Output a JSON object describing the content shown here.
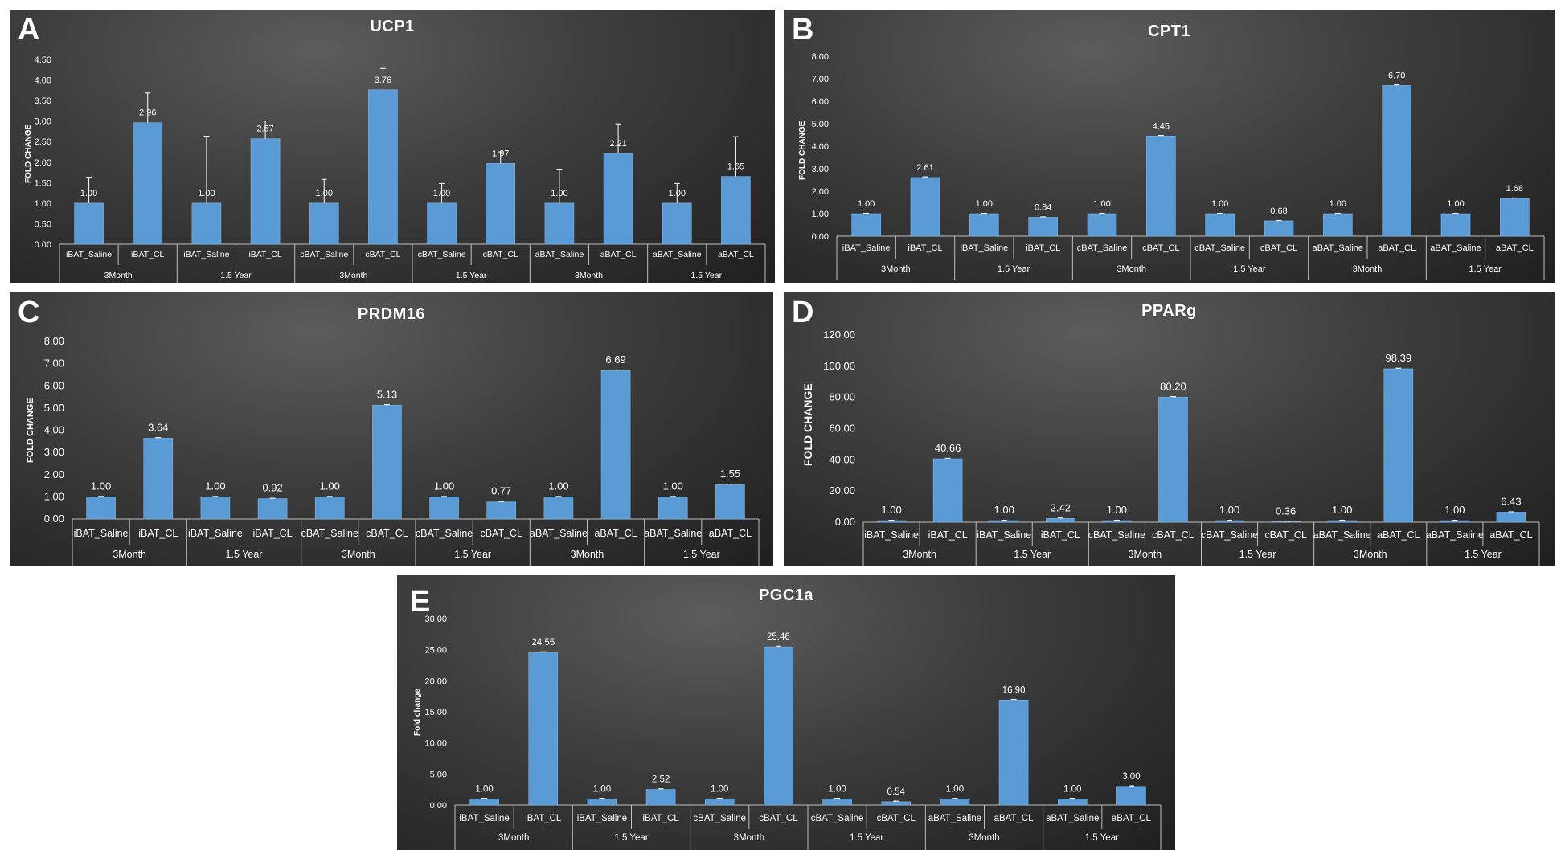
{
  "chart_data": [
    {
      "panel": "A",
      "type": "bar",
      "title": "UCP1",
      "ylabel": "FOLD CHANGE",
      "ylim": [
        0,
        4.5
      ],
      "yticks": [
        "0.00",
        "0.50",
        "1.00",
        "1.50",
        "2.00",
        "2.50",
        "3.00",
        "3.50",
        "4.00",
        "4.50"
      ],
      "categories": [
        "iBAT_Saline",
        "iBAT_CL",
        "iBAT_Saline",
        "iBAT_CL",
        "cBAT_Saline",
        "cBAT_CL",
        "cBAT_Saline",
        "cBAT_CL",
        "aBAT_Saline",
        "aBAT_CL",
        "aBAT_Saline",
        "aBAT_CL"
      ],
      "groups": [
        "3Month",
        "1.5 Year",
        "3Month",
        "1.5 Year",
        "3Month",
        "1.5 Year"
      ],
      "values": [
        1.0,
        2.96,
        1.0,
        2.57,
        1.0,
        3.76,
        1.0,
        1.97,
        1.0,
        2.21,
        1.0,
        1.65
      ],
      "labels": [
        "1.00",
        "2.96",
        "1.00",
        "2.57",
        "1.00",
        "3.76",
        "1.00",
        "1.97",
        "1.00",
        "2.21",
        "1.00",
        "1.65"
      ],
      "errors": [
        0.63,
        0.72,
        1.63,
        0.43,
        0.58,
        0.52,
        0.48,
        0.28,
        0.83,
        0.72,
        0.48,
        0.97
      ]
    },
    {
      "panel": "B",
      "type": "bar",
      "title": "CPT1",
      "ylabel": "FOLD CHANGE",
      "ylim": [
        0,
        8
      ],
      "yticks": [
        "0.00",
        "1.00",
        "2.00",
        "3.00",
        "4.00",
        "5.00",
        "6.00",
        "7.00",
        "8.00"
      ],
      "categories": [
        "iBAT_Saline",
        "iBAT_CL",
        "iBAT_Saline",
        "iBAT_CL",
        "cBAT_Saline",
        "cBAT_CL",
        "cBAT_Saline",
        "cBAT_CL",
        "aBAT_Saline",
        "aBAT_CL",
        "aBAT_Saline",
        "aBAT_CL"
      ],
      "groups": [
        "3Month",
        "1.5 Year",
        "3Month",
        "1.5 Year",
        "3Month",
        "1.5 Year"
      ],
      "values": [
        1.0,
        2.61,
        1.0,
        0.84,
        1.0,
        4.45,
        1.0,
        0.68,
        1.0,
        6.7,
        1.0,
        1.68
      ],
      "labels": [
        "1.00",
        "2.61",
        "1.00",
        "0.84",
        "1.00",
        "4.45",
        "1.00",
        "0.68",
        "1.00",
        "6.70",
        "1.00",
        "1.68"
      ],
      "errors": [
        0.02,
        0.03,
        0.02,
        0.02,
        0.02,
        0.03,
        0.02,
        0.02,
        0.02,
        0.03,
        0.02,
        0.02
      ]
    },
    {
      "panel": "C",
      "type": "bar",
      "title": "PRDM16",
      "ylabel": "FOLD CHANGE",
      "ylim": [
        0,
        8
      ],
      "yticks": [
        "0.00",
        "1.00",
        "2.00",
        "3.00",
        "4.00",
        "5.00",
        "6.00",
        "7.00",
        "8.00"
      ],
      "categories": [
        "iBAT_Saline",
        "iBAT_CL",
        "iBAT_Saline",
        "iBAT_CL",
        "cBAT_Saline",
        "cBAT_CL",
        "cBAT_Saline",
        "cBAT_CL",
        "aBAT_Saline",
        "aBAT_CL",
        "aBAT_Saline",
        "aBAT_CL"
      ],
      "groups": [
        "3Month",
        "1.5 Year",
        "3Month",
        "1.5 Year",
        "3Month",
        "1.5 Year"
      ],
      "values": [
        1.0,
        3.64,
        1.0,
        0.92,
        1.0,
        5.13,
        1.0,
        0.77,
        1.0,
        6.69,
        1.0,
        1.55
      ],
      "labels": [
        "1.00",
        "3.64",
        "1.00",
        "0.92",
        "1.00",
        "5.13",
        "1.00",
        "0.77",
        "1.00",
        "6.69",
        "1.00",
        "1.55"
      ],
      "errors": [
        0.02,
        0.03,
        0.02,
        0.02,
        0.02,
        0.03,
        0.02,
        0.02,
        0.02,
        0.03,
        0.02,
        0.02
      ]
    },
    {
      "panel": "D",
      "type": "bar",
      "title": "PPARg",
      "ylabel": "FOLD CHANGE",
      "ylim": [
        0,
        120
      ],
      "yticks": [
        "0.00",
        "20.00",
        "40.00",
        "60.00",
        "80.00",
        "100.00",
        "120.00"
      ],
      "categories": [
        "iBAT_Saline",
        "iBAT_CL",
        "iBAT_Saline",
        "iBAT_CL",
        "cBAT_Saline",
        "cBAT_CL",
        "cBAT_Saline",
        "cBAT_CL",
        "aBAT_Saline",
        "aBAT_CL",
        "aBAT_Saline",
        "aBAT_CL"
      ],
      "groups": [
        "3Month",
        "1.5 Year",
        "3Month",
        "1.5 Year",
        "3Month",
        "1.5 Year"
      ],
      "values": [
        1.0,
        40.66,
        1.0,
        2.42,
        1.0,
        80.2,
        1.0,
        0.36,
        1.0,
        98.39,
        1.0,
        6.43
      ],
      "labels": [
        "1.00",
        "40.66",
        "1.00",
        "2.42",
        "1.00",
        "80.20",
        "1.00",
        "0.36",
        "1.00",
        "98.39",
        "1.00",
        "6.43"
      ],
      "errors": [
        0.3,
        0.4,
        0.3,
        0.3,
        0.3,
        0.4,
        0.3,
        0.3,
        0.3,
        0.4,
        0.3,
        0.3
      ]
    },
    {
      "panel": "E",
      "type": "bar",
      "title": "PGC1a",
      "ylabel": "Fold change",
      "ylim": [
        0,
        30
      ],
      "yticks": [
        "0.00",
        "5.00",
        "10.00",
        "15.00",
        "20.00",
        "25.00",
        "30.00"
      ],
      "categories": [
        "iBAT_Saline",
        "iBAT_CL",
        "iBAT_Saline",
        "iBAT_CL",
        "cBAT_Saline",
        "cBAT_CL",
        "cBAT_Saline",
        "cBAT_CL",
        "aBAT_Saline",
        "aBAT_CL",
        "aBAT_Saline",
        "aBAT_CL"
      ],
      "groups": [
        "3Month",
        "1.5 Year",
        "3Month",
        "1.5 Year",
        "3Month",
        "1.5 Year"
      ],
      "values": [
        1.0,
        24.55,
        1.0,
        2.52,
        1.0,
        25.46,
        1.0,
        0.54,
        1.0,
        16.9,
        1.0,
        3.0
      ],
      "labels": [
        "1.00",
        "24.55",
        "1.00",
        "2.52",
        "1.00",
        "25.46",
        "1.00",
        "0.54",
        "1.00",
        "16.90",
        "1.00",
        "3.00"
      ],
      "errors": [
        0.1,
        0.12,
        0.1,
        0.1,
        0.1,
        0.12,
        0.1,
        0.1,
        0.1,
        0.12,
        0.1,
        0.1
      ]
    }
  ],
  "colors": {
    "bar": "#5b9bd5",
    "bar_edge": "#7fb4e6",
    "text": "#ffffff",
    "axis": "#bfbfbf"
  }
}
